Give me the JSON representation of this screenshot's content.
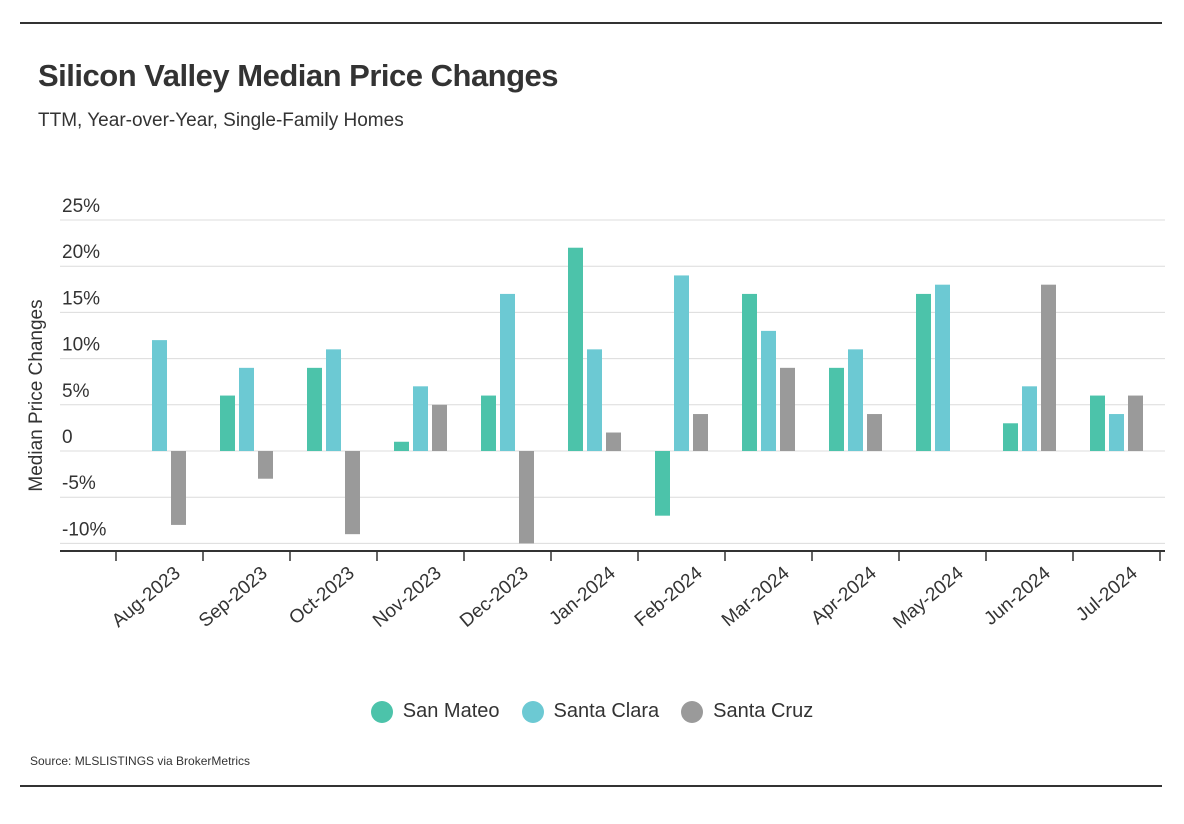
{
  "header": {
    "title": "Silicon Valley Median Price Changes",
    "subtitle": "TTM, Year-over-Year, Single-Family Homes"
  },
  "footer": {
    "source": "Source:  MLSLISTINGS via BrokerMetrics"
  },
  "colors": {
    "san_mateo": "#4cc3aa",
    "santa_clara": "#6cc9d3",
    "santa_cruz": "#9a9a9a"
  },
  "chart_data": {
    "type": "bar",
    "title": "Silicon Valley Median Price Changes",
    "subtitle": "TTM, Year-over-Year, Single-Family Homes",
    "xlabel": "",
    "ylabel": "Median Price Changes",
    "ylim": [
      -10,
      25
    ],
    "yticks": [
      25,
      20,
      15,
      10,
      5,
      0,
      -5,
      -10
    ],
    "ytick_labels": [
      "25%",
      "20%",
      "15%",
      "10%",
      "5%",
      "0",
      "-5%",
      "-10%"
    ],
    "grid": true,
    "legend_position": "bottom-center",
    "categories": [
      "Aug-2023",
      "Sep-2023",
      "Oct-2023",
      "Nov-2023",
      "Dec-2023",
      "Jan-2024",
      "Feb-2024",
      "Mar-2024",
      "Apr-2024",
      "May-2024",
      "Jun-2024",
      "Jul-2024"
    ],
    "series": [
      {
        "name": "San Mateo",
        "color": "#4cc3aa",
        "values": [
          0,
          6,
          9,
          1,
          6,
          22,
          -7,
          17,
          9,
          17,
          3,
          6
        ]
      },
      {
        "name": "Santa Clara",
        "color": "#6cc9d3",
        "values": [
          12,
          9,
          11,
          7,
          17,
          11,
          19,
          13,
          11,
          18,
          7,
          4
        ]
      },
      {
        "name": "Santa Cruz",
        "color": "#9a9a9a",
        "values": [
          -8,
          -3,
          -9,
          5,
          -10,
          2,
          4,
          9,
          4,
          0,
          18,
          6
        ]
      }
    ]
  }
}
